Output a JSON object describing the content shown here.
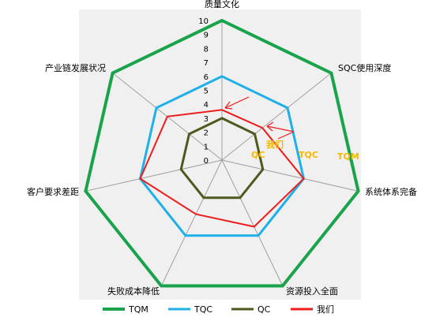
{
  "chart_data": {
    "type": "radar",
    "axes": [
      "质量文化",
      "SQC使用深度",
      "系统体系完备",
      "资源投入全面",
      "失败成本降低",
      "客户要求差距",
      "产业链发展状况"
    ],
    "r_ticks": [
      "0",
      "1",
      "2",
      "3",
      "4",
      "5",
      "6",
      "7",
      "8",
      "9",
      "10"
    ],
    "rlim": [
      0,
      10
    ],
    "series": [
      {
        "name": "TQM",
        "color": "#1aa34a",
        "values": [
          10,
          10,
          10,
          10,
          10,
          10,
          10
        ]
      },
      {
        "name": "TQC",
        "color": "#1fb0e8",
        "values": [
          6,
          6,
          6,
          6,
          6,
          6,
          6
        ]
      },
      {
        "name": "QC",
        "color": "#4d5a1e",
        "values": [
          3,
          3,
          3,
          3,
          3,
          3,
          3
        ]
      },
      {
        "name": "我们",
        "color": "#ee1c1c",
        "values": [
          3.6,
          3.7,
          6,
          5.3,
          4.3,
          6,
          5
        ]
      }
    ],
    "annotations": [
      {
        "text": "我们",
        "color": "#f5b800"
      },
      {
        "text": "TQM",
        "color": "#f5b800"
      },
      {
        "text": "TQC",
        "color": "#f5b800"
      },
      {
        "text": "QC",
        "color": "#f5b800"
      }
    ],
    "legend_position": "bottom",
    "grid": true
  }
}
